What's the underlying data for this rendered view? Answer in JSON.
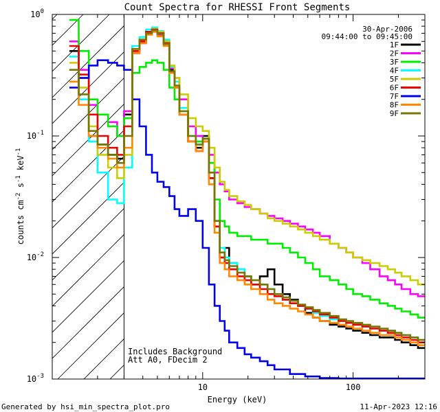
{
  "chart_data": {
    "type": "line",
    "title": "Count Spectra for RHESSI Front Segments",
    "xlabel": "Energy (keV)",
    "ylabel_parts": [
      "counts cm",
      "-2",
      " s",
      "-1",
      " keV",
      "-1"
    ],
    "xscale": "log",
    "yscale": "log",
    "xlim": [
      1.0,
      300.0
    ],
    "ylim": [
      0.001,
      1.0
    ],
    "x_ticks": [
      {
        "v": 10,
        "label": "10"
      },
      {
        "v": 100,
        "label": "100"
      }
    ],
    "y_ticks": [
      {
        "v": 0.001,
        "base": "10",
        "exp": "-3"
      },
      {
        "v": 0.01,
        "base": "10",
        "exp": "-2"
      },
      {
        "v": 0.1,
        "base": "10",
        "exp": "-1"
      },
      {
        "v": 1.0,
        "base": "10",
        "exp": "0"
      }
    ],
    "date": "30-Apr-2006",
    "time_range": "09:44:00 to 09:45:00",
    "attenuator_cutoff_keV": 3.0,
    "annotations": [
      "Includes Background",
      "Att A0, FDecim 2"
    ],
    "footer_left": "Generated by hsi_min_spectra_plot.pro",
    "footer_right": "11-Apr-2023 12:16",
    "energy_bins": [
      1.3,
      1.5,
      1.75,
      2.0,
      2.35,
      2.7,
      3.0,
      3.4,
      3.8,
      4.2,
      4.6,
      5.0,
      5.5,
      6.0,
      6.5,
      7.0,
      8.0,
      9.0,
      10.0,
      11.0,
      12.0,
      13.0,
      14.0,
      15.0,
      17.0,
      19.0,
      21.0,
      24.0,
      27.0,
      30.0,
      34.0,
      38.0,
      43.0,
      48.0,
      54.0,
      60.0,
      70.0,
      80.0,
      90.0,
      100.0,
      115.0,
      130.0,
      150.0,
      170.0,
      190.0,
      210.0,
      240.0,
      270.0,
      300.0
    ],
    "series": [
      {
        "name": "1F",
        "color": "#000000",
        "values": [
          0.5,
          0.3,
          0.1,
          0.085,
          0.07,
          0.065,
          0.15,
          0.5,
          0.6,
          0.72,
          0.75,
          0.7,
          0.6,
          0.35,
          0.25,
          0.15,
          0.09,
          0.08,
          0.1,
          0.045,
          0.018,
          0.01,
          0.012,
          0.009,
          0.008,
          0.007,
          0.006,
          0.007,
          0.008,
          0.006,
          0.005,
          0.0045,
          0.004,
          0.0035,
          0.0032,
          0.003,
          0.0028,
          0.0027,
          0.0026,
          0.0025,
          0.0024,
          0.0023,
          0.0022,
          0.0022,
          0.0021,
          0.002,
          0.0019,
          0.0018
        ]
      },
      {
        "name": "2F",
        "color": "#ff00ff",
        "values": [
          0.6,
          0.35,
          0.18,
          0.15,
          0.13,
          0.1,
          0.16,
          0.48,
          0.58,
          0.7,
          0.72,
          0.68,
          0.58,
          0.36,
          0.3,
          0.2,
          0.12,
          0.1,
          0.095,
          0.07,
          0.05,
          0.04,
          0.035,
          0.03,
          0.028,
          0.026,
          0.025,
          0.023,
          0.022,
          0.021,
          0.02,
          0.019,
          0.018,
          0.017,
          0.016,
          0.015,
          0.013,
          0.012,
          0.011,
          0.01,
          0.009,
          0.008,
          0.007,
          0.0065,
          0.006,
          0.0055,
          0.005,
          0.0048
        ]
      },
      {
        "name": "3F",
        "color": "#00ee00",
        "values": [
          0.9,
          0.5,
          0.2,
          0.15,
          0.12,
          0.1,
          0.14,
          0.33,
          0.37,
          0.4,
          0.42,
          0.4,
          0.35,
          0.25,
          0.2,
          0.15,
          0.1,
          0.09,
          0.095,
          0.06,
          0.03,
          0.02,
          0.018,
          0.016,
          0.015,
          0.015,
          0.014,
          0.014,
          0.013,
          0.013,
          0.012,
          0.011,
          0.01,
          0.009,
          0.008,
          0.007,
          0.0065,
          0.006,
          0.0055,
          0.005,
          0.0048,
          0.0045,
          0.0042,
          0.004,
          0.0038,
          0.0036,
          0.0034,
          0.0032
        ]
      },
      {
        "name": "4F",
        "color": "#00ffff",
        "values": [
          0.45,
          0.2,
          0.09,
          0.05,
          0.03,
          0.028,
          0.055,
          0.55,
          0.65,
          0.75,
          0.78,
          0.73,
          0.62,
          0.37,
          0.28,
          0.17,
          0.1,
          0.085,
          0.09,
          0.05,
          0.02,
          0.012,
          0.01,
          0.009,
          0.008,
          0.007,
          0.006,
          0.006,
          0.0055,
          0.005,
          0.0045,
          0.0042,
          0.004,
          0.0038,
          0.0035,
          0.0033,
          0.0031,
          0.003,
          0.0029,
          0.0028,
          0.0027,
          0.0026,
          0.0025,
          0.0025,
          0.0024,
          0.0023,
          0.0022,
          0.0021
        ]
      },
      {
        "name": "5F",
        "color": "#cccc00",
        "values": [
          0.4,
          0.25,
          0.12,
          0.07,
          0.055,
          0.045,
          0.07,
          0.52,
          0.62,
          0.72,
          0.76,
          0.72,
          0.6,
          0.38,
          0.3,
          0.22,
          0.14,
          0.12,
          0.11,
          0.08,
          0.055,
          0.042,
          0.036,
          0.032,
          0.029,
          0.027,
          0.025,
          0.023,
          0.021,
          0.02,
          0.019,
          0.018,
          0.017,
          0.016,
          0.015,
          0.014,
          0.013,
          0.012,
          0.011,
          0.01,
          0.0095,
          0.009,
          0.0085,
          0.008,
          0.0075,
          0.007,
          0.0065,
          0.006
        ]
      },
      {
        "name": "6F",
        "color": "#ee0000",
        "values": [
          0.55,
          0.32,
          0.15,
          0.1,
          0.08,
          0.07,
          0.12,
          0.5,
          0.6,
          0.72,
          0.75,
          0.7,
          0.58,
          0.34,
          0.25,
          0.15,
          0.09,
          0.075,
          0.09,
          0.045,
          0.018,
          0.01,
          0.009,
          0.008,
          0.007,
          0.0065,
          0.006,
          0.0055,
          0.005,
          0.0048,
          0.0045,
          0.0042,
          0.004,
          0.0038,
          0.0036,
          0.0034,
          0.0032,
          0.003,
          0.0029,
          0.0028,
          0.0027,
          0.0026,
          0.0025,
          0.0024,
          0.0023,
          0.0022,
          0.0021,
          0.002
        ]
      },
      {
        "name": "7F",
        "color": "#0000ee",
        "values": [
          0.25,
          0.3,
          0.38,
          0.42,
          0.4,
          0.38,
          0.35,
          0.2,
          0.12,
          0.07,
          0.05,
          0.042,
          0.038,
          0.032,
          0.025,
          0.022,
          0.025,
          0.02,
          0.012,
          0.006,
          0.004,
          0.003,
          0.0025,
          0.002,
          0.0018,
          0.0016,
          0.0015,
          0.0014,
          0.0013,
          0.0012,
          0.0012,
          0.0011,
          0.0011,
          0.00105,
          0.00105,
          0.00102,
          0.00102,
          0.00101,
          0.00101,
          0.00101,
          0.00101,
          0.00101,
          0.00101,
          0.00101,
          0.00101,
          0.00101,
          0.00101,
          0.00101
        ]
      },
      {
        "name": "8F",
        "color": "#ff8800",
        "values": [
          0.28,
          0.18,
          0.1,
          0.08,
          0.065,
          0.055,
          0.08,
          0.48,
          0.58,
          0.68,
          0.72,
          0.66,
          0.55,
          0.33,
          0.25,
          0.15,
          0.09,
          0.075,
          0.09,
          0.04,
          0.016,
          0.009,
          0.008,
          0.007,
          0.0065,
          0.006,
          0.0055,
          0.005,
          0.0045,
          0.0042,
          0.004,
          0.0038,
          0.0036,
          0.0034,
          0.0032,
          0.003,
          0.0029,
          0.0028,
          0.0027,
          0.0026,
          0.0025,
          0.0024,
          0.0023,
          0.0023,
          0.0022,
          0.0021,
          0.002,
          0.0019
        ]
      },
      {
        "name": "9F",
        "color": "#777700",
        "values": [
          0.35,
          0.22,
          0.11,
          0.085,
          0.07,
          0.06,
          0.1,
          0.52,
          0.62,
          0.7,
          0.74,
          0.69,
          0.57,
          0.34,
          0.26,
          0.16,
          0.1,
          0.085,
          0.095,
          0.05,
          0.02,
          0.011,
          0.0095,
          0.0085,
          0.0075,
          0.007,
          0.0065,
          0.006,
          0.0055,
          0.005,
          0.0047,
          0.0044,
          0.0041,
          0.0039,
          0.0037,
          0.0035,
          0.0033,
          0.0031,
          0.003,
          0.0029,
          0.0028,
          0.0027,
          0.0026,
          0.0025,
          0.0024,
          0.0023,
          0.0022,
          0.0021
        ]
      }
    ]
  }
}
